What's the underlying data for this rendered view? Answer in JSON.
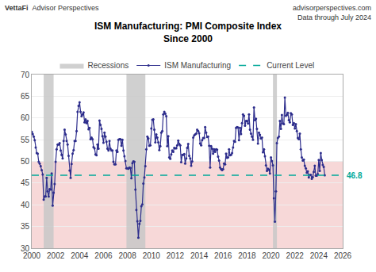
{
  "chart_data": {
    "type": "line",
    "title": "ISM Manufacturing: PMI Composite Index",
    "subtitle": "Since 2000",
    "annotations": [
      "VettaFi",
      "Advisor Perspectives",
      "advisorperspectives.com",
      "Data through July 2024"
    ],
    "x": [
      2000.0,
      2000.083,
      2000.167,
      2000.25,
      2000.333,
      2000.417,
      2000.5,
      2000.583,
      2000.667,
      2000.75,
      2000.833,
      2000.917,
      2001.0,
      2001.083,
      2001.167,
      2001.25,
      2001.333,
      2001.417,
      2001.5,
      2001.583,
      2001.667,
      2001.75,
      2001.833,
      2001.917,
      2002.0,
      2002.083,
      2002.167,
      2002.25,
      2002.333,
      2002.417,
      2002.5,
      2002.583,
      2002.667,
      2002.75,
      2002.833,
      2002.917,
      2003.0,
      2003.083,
      2003.167,
      2003.25,
      2003.333,
      2003.417,
      2003.5,
      2003.583,
      2003.667,
      2003.75,
      2003.833,
      2003.917,
      2004.0,
      2004.083,
      2004.167,
      2004.25,
      2004.333,
      2004.417,
      2004.5,
      2004.583,
      2004.667,
      2004.75,
      2004.833,
      2004.917,
      2005.0,
      2005.083,
      2005.167,
      2005.25,
      2005.333,
      2005.417,
      2005.5,
      2005.583,
      2005.667,
      2005.75,
      2005.833,
      2005.917,
      2006.0,
      2006.083,
      2006.167,
      2006.25,
      2006.333,
      2006.417,
      2006.5,
      2006.583,
      2006.667,
      2006.75,
      2006.833,
      2006.917,
      2007.0,
      2007.083,
      2007.167,
      2007.25,
      2007.333,
      2007.417,
      2007.5,
      2007.583,
      2007.667,
      2007.75,
      2007.833,
      2007.917,
      2008.0,
      2008.083,
      2008.167,
      2008.25,
      2008.333,
      2008.417,
      2008.5,
      2008.583,
      2008.667,
      2008.75,
      2008.833,
      2008.917,
      2009.0,
      2009.083,
      2009.167,
      2009.25,
      2009.333,
      2009.417,
      2009.5,
      2009.583,
      2009.667,
      2009.75,
      2009.833,
      2009.917,
      2010.0,
      2010.083,
      2010.167,
      2010.25,
      2010.333,
      2010.417,
      2010.5,
      2010.583,
      2010.667,
      2010.75,
      2010.833,
      2010.917,
      2011.0,
      2011.083,
      2011.167,
      2011.25,
      2011.333,
      2011.417,
      2011.5,
      2011.583,
      2011.667,
      2011.75,
      2011.833,
      2011.917,
      2012.0,
      2012.083,
      2012.167,
      2012.25,
      2012.333,
      2012.417,
      2012.5,
      2012.583,
      2012.667,
      2012.75,
      2012.833,
      2012.917,
      2013.0,
      2013.083,
      2013.167,
      2013.25,
      2013.333,
      2013.417,
      2013.5,
      2013.583,
      2013.667,
      2013.75,
      2013.833,
      2013.917,
      2014.0,
      2014.083,
      2014.167,
      2014.25,
      2014.333,
      2014.417,
      2014.5,
      2014.583,
      2014.667,
      2014.75,
      2014.833,
      2014.917,
      2015.0,
      2015.083,
      2015.167,
      2015.25,
      2015.333,
      2015.417,
      2015.5,
      2015.583,
      2015.667,
      2015.75,
      2015.833,
      2015.917,
      2016.0,
      2016.083,
      2016.167,
      2016.25,
      2016.333,
      2016.417,
      2016.5,
      2016.583,
      2016.667,
      2016.75,
      2016.833,
      2016.917,
      2017.0,
      2017.083,
      2017.167,
      2017.25,
      2017.333,
      2017.417,
      2017.5,
      2017.583,
      2017.667,
      2017.75,
      2017.833,
      2017.917,
      2018.0,
      2018.083,
      2018.167,
      2018.25,
      2018.333,
      2018.417,
      2018.5,
      2018.583,
      2018.667,
      2018.75,
      2018.833,
      2018.917,
      2019.0,
      2019.083,
      2019.167,
      2019.25,
      2019.333,
      2019.417,
      2019.5,
      2019.583,
      2019.667,
      2019.75,
      2019.833,
      2019.917,
      2020.0,
      2020.083,
      2020.167,
      2020.25,
      2020.333,
      2020.417,
      2020.5,
      2020.583,
      2020.667,
      2020.75,
      2020.833,
      2020.917,
      2021.0,
      2021.083,
      2021.167,
      2021.25,
      2021.333,
      2021.417,
      2021.5,
      2021.583,
      2021.667,
      2021.75,
      2021.833,
      2021.917,
      2022.0,
      2022.083,
      2022.167,
      2022.25,
      2022.333,
      2022.417,
      2022.5,
      2022.583,
      2022.667,
      2022.75,
      2022.833,
      2022.917,
      2023.0,
      2023.083,
      2023.167,
      2023.25,
      2023.333,
      2023.417,
      2023.5,
      2023.583,
      2023.667,
      2023.75,
      2023.833,
      2023.917,
      2024.0,
      2024.083,
      2024.167,
      2024.25,
      2024.333,
      2024.417,
      2024.5
    ],
    "series": [
      {
        "name": "ISM Manufacturing",
        "color": "#2d2d8c",
        "marker": "circle",
        "line_style": "solid",
        "values": [
          56.8,
          56.3,
          55.7,
          54.9,
          53.2,
          51.9,
          51.8,
          49.9,
          49.5,
          48.9,
          48.0,
          47.0,
          41.2,
          41.9,
          41.9,
          46.2,
          43.1,
          41.9,
          43.6,
          43.5,
          47.2,
          39.8,
          42.8,
          44.8,
          49.9,
          52.8,
          53.9,
          53.9,
          54.2,
          52.5,
          51.5,
          50.7,
          54.7,
          57.3,
          56.2,
          54.7,
          53.9,
          51.3,
          47.9,
          46.2,
          49.4,
          51.8,
          52.6,
          54.7,
          54.7,
          57.0,
          61.4,
          62.8,
          63.6,
          61.4,
          60.4,
          60.8,
          61.3,
          59.0,
          59.7,
          58.8,
          59.3,
          57.4,
          57.7,
          55.1,
          55.5,
          55.1,
          53.3,
          53.0,
          51.6,
          51.4,
          53.9,
          52.9,
          59.4,
          58.4,
          57.5,
          55.8,
          54.3,
          56.6,
          55.7,
          54.5,
          52.9,
          52.5,
          54.7,
          52.9,
          52.5,
          52.5,
          49.9,
          49.3,
          49.3,
          52.5,
          52.2,
          55.0,
          55.1,
          55.1,
          53.6,
          55.0,
          52.5,
          51.2,
          50.1,
          48.4,
          48.4,
          48.3,
          48.6,
          48.5,
          46.1,
          49.6,
          50.0,
          49.9,
          43.5,
          38.8,
          36.2,
          32.4,
          35.6,
          36.3,
          39.7,
          40.1,
          44.9,
          46.3,
          48.9,
          52.8,
          55.7,
          55.3,
          53.6,
          53.7,
          57.6,
          59.6,
          59.7,
          57.3,
          54.4,
          56.2,
          55.5,
          54.4,
          52.6,
          53.5,
          56.6,
          57.0,
          60.8,
          61.4,
          61.0,
          60.4,
          53.5,
          55.8,
          50.9,
          50.6,
          51.6,
          52.5,
          52.2,
          53.1,
          53.0,
          53.0,
          53.7,
          54.8,
          54.0,
          53.7,
          49.8,
          51.5,
          51.5,
          51.7,
          49.5,
          50.7,
          53.1,
          54.0,
          51.3,
          50.7,
          49.0,
          50.0,
          55.5,
          56.0,
          56.2,
          56.4,
          57.3,
          57.0,
          56.5,
          54.1,
          53.7,
          54.9,
          55.4,
          55.4,
          57.9,
          56.6,
          55.6,
          55.7,
          53.6,
          48.6,
          53.5,
          52.9,
          51.8,
          52.8,
          52.2,
          52.8,
          52.7,
          51.1,
          50.2,
          48.6,
          48.2,
          48.0,
          48.2,
          49.5,
          49.3,
          51.8,
          50.8,
          50.9,
          52.8,
          51.4,
          51.5,
          51.9,
          53.2,
          54.7,
          54.5,
          57.7,
          57.9,
          57.8,
          54.9,
          57.7,
          56.3,
          58.8,
          60.8,
          60.5,
          58.2,
          59.3,
          59.3,
          58.7,
          60.8,
          57.3,
          56.4,
          55.7,
          55.0,
          62.4,
          59.5,
          59.8,
          57.5,
          54.1,
          56.6,
          56.1,
          55.3,
          55.5,
          52.1,
          52.8,
          51.2,
          49.1,
          47.8,
          48.3,
          48.1,
          47.2,
          50.9,
          50.1,
          49.1,
          41.5,
          36.1,
          43.1,
          54.2,
          55.4,
          55.7,
          59.3,
          57.5,
          60.7,
          58.7,
          58.6,
          64.7,
          60.5,
          60.7,
          61.2,
          59.5,
          59.0,
          61.1,
          60.8,
          58.4,
          58.8,
          57.6,
          58.6,
          57.0,
          55.4,
          55.1,
          56.4,
          52.8,
          50.9,
          50.2,
          50.4,
          49.0,
          48.4,
          47.4,
          47.7,
          46.3,
          46.9,
          46.9,
          46.0,
          46.4,
          47.6,
          49.0,
          46.7,
          46.7,
          47.1,
          50.3,
          47.8,
          51.9,
          50.3,
          49.2,
          48.7,
          46.8
        ]
      }
    ],
    "recessions": {
      "name": "Recessions",
      "color": "#c8c8c8",
      "periods": [
        [
          2001.0,
          2001.83
        ],
        [
          2007.92,
          2009.5
        ],
        [
          2020.17,
          2020.5
        ]
      ]
    },
    "current_level": {
      "name": "Current Level",
      "value": 46.8,
      "color": "#00a899",
      "line_style": "dashed",
      "data_labels": true
    },
    "shaded_below": {
      "value": 50,
      "color": "#f7d8d8"
    },
    "xlim": [
      2000,
      2026
    ],
    "xticks": [
      2000,
      2002,
      2004,
      2006,
      2008,
      2010,
      2012,
      2014,
      2016,
      2018,
      2020,
      2022,
      2024,
      2026
    ],
    "ylim": [
      30,
      70
    ],
    "yticks": [
      30,
      35,
      40,
      45,
      50,
      55,
      60,
      65,
      70
    ],
    "grid": "y",
    "legend": "top"
  }
}
